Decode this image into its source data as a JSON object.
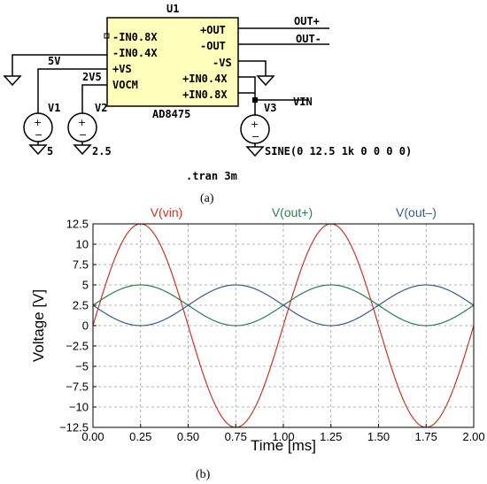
{
  "schematic": {
    "chip": {
      "ref": "U1",
      "part": "AD8475",
      "pins_left": [
        "-IN0.8X",
        "-IN0.4X",
        "+VS",
        "VOCM"
      ],
      "pins_right": [
        "+OUT",
        "-OUT",
        "-VS",
        "+IN0.4X",
        "+IN0.8X"
      ]
    },
    "nets": {
      "out_plus": "OUT+",
      "out_minus": "OUT-",
      "vin": "VIN",
      "v5": "5V",
      "v25": "2V5"
    },
    "sources": [
      {
        "ref": "V1",
        "value": "5"
      },
      {
        "ref": "V2",
        "value": "2.5"
      },
      {
        "ref": "V3",
        "value": "SINE(0 12.5 1k 0 0 0 0)"
      }
    ],
    "directive": ".tran 3m",
    "colors": {
      "chip_fill": "#ffffbb",
      "wire": "#000000"
    }
  },
  "captions": {
    "a": "(a)",
    "b": "(b)"
  },
  "chart_data": {
    "type": "line",
    "xlabel": "Time [ms]",
    "ylabel": "Voltage [V]",
    "xlim": [
      0,
      2
    ],
    "ylim": [
      -12.5,
      12.5
    ],
    "xticks": [
      "0.00",
      "0.25",
      "0.50",
      "0.75",
      "1.00",
      "1.25",
      "1.50",
      "1.75",
      "2.00"
    ],
    "yticks": [
      "12.5",
      "10",
      "7.5",
      "5",
      "2.5",
      "0",
      "−2.5",
      "−5",
      "−7.5",
      "−10",
      "−12.5"
    ],
    "grid": true,
    "legend": "top",
    "series": [
      {
        "name": "V(vin)",
        "color": "#c0392b",
        "offset": 0,
        "amplitude": 12.5,
        "frequency_khz": 1
      },
      {
        "name": "V(out+)",
        "color": "#2e7d4f",
        "offset": 2.5,
        "amplitude": 2.5,
        "frequency_khz": 1
      },
      {
        "name": "V(out–)",
        "color": "#3a5a8c",
        "offset": 2.5,
        "amplitude": -2.5,
        "frequency_khz": 1
      }
    ]
  }
}
